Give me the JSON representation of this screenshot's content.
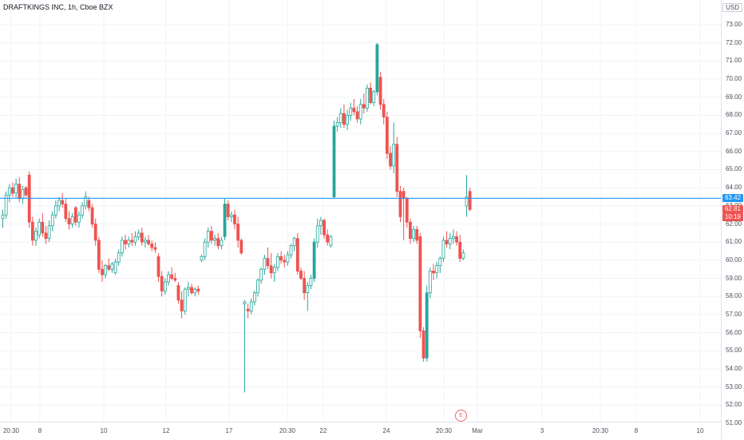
{
  "title": "DRAFTKINGS INC, 1h, Cboe BZX",
  "currency": "USD",
  "colors": {
    "up": "#26a69a",
    "down": "#ef5350",
    "price_line": "#2196f3",
    "grid": "#f0f3fa"
  },
  "price_ticks": [
    "73.00",
    "72.00",
    "71.00",
    "70.00",
    "69.00",
    "68.00",
    "67.00",
    "66.00",
    "65.00",
    "64.00",
    "63.00",
    "62.00",
    "61.00",
    "60.00",
    "59.00",
    "58.00",
    "57.00",
    "56.00",
    "55.00",
    "54.00",
    "53.00",
    "52.00",
    "51.00"
  ],
  "time_labels": [
    "20:30",
    "8",
    "10",
    "12",
    "17",
    "20:30",
    "22",
    "24",
    "20:30",
    "Mar",
    "3",
    "20:30",
    "8",
    "10"
  ],
  "last_price": "63.42",
  "current_price": "62.81",
  "countdown": "10:19",
  "earnings_marker": "E",
  "chart_data": {
    "type": "candlestick",
    "title": "DRAFTKINGS INC, 1h, Cboe BZX",
    "ylim": [
      50.5,
      73.5
    ],
    "y_unit": "USD",
    "reference_line": 63.42,
    "candles": [
      [
        62.3,
        62.8,
        61.8,
        62.5
      ],
      [
        62.5,
        63.8,
        62.3,
        63.6
      ],
      [
        63.6,
        64.2,
        63.2,
        64.0
      ],
      [
        64.0,
        64.3,
        63.5,
        63.7
      ],
      [
        63.7,
        64.5,
        63.4,
        64.2
      ],
      [
        64.2,
        64.6,
        63.2,
        63.4
      ],
      [
        63.4,
        64.1,
        63.1,
        63.9
      ],
      [
        64.0,
        64.1,
        63.5,
        63.6
      ],
      [
        64.7,
        64.9,
        61.8,
        62.1
      ],
      [
        62.1,
        62.4,
        60.8,
        61.1
      ],
      [
        61.1,
        61.8,
        60.8,
        61.6
      ],
      [
        61.4,
        62.3,
        61.2,
        62.1
      ],
      [
        62.1,
        62.6,
        61.3,
        61.5
      ],
      [
        61.5,
        61.9,
        60.9,
        61.2
      ],
      [
        61.2,
        62.2,
        61.0,
        61.9
      ],
      [
        61.9,
        62.7,
        61.6,
        62.5
      ],
      [
        62.5,
        63.3,
        62.3,
        63.0
      ],
      [
        63.0,
        63.5,
        62.7,
        63.3
      ],
      [
        63.3,
        63.7,
        62.9,
        63.1
      ],
      [
        63.1,
        63.4,
        62.1,
        62.3
      ],
      [
        62.3,
        62.7,
        61.7,
        62.0
      ],
      [
        62.0,
        62.6,
        61.8,
        62.4
      ],
      [
        62.9,
        63.0,
        61.9,
        62.1
      ],
      [
        62.1,
        62.7,
        61.8,
        62.5
      ],
      [
        62.5,
        63.2,
        62.3,
        63.0
      ],
      [
        63.0,
        63.8,
        62.8,
        63.5
      ],
      [
        63.3,
        63.5,
        62.7,
        62.9
      ],
      [
        62.9,
        63.1,
        61.8,
        62.0
      ],
      [
        62.0,
        62.3,
        60.8,
        61.1
      ],
      [
        61.1,
        61.3,
        59.3,
        59.5
      ],
      [
        59.5,
        60.0,
        58.8,
        59.2
      ],
      [
        59.2,
        59.8,
        59.0,
        59.7
      ],
      [
        59.7,
        60.1,
        59.4,
        59.5
      ],
      [
        59.5,
        59.9,
        59.3,
        59.8
      ],
      [
        59.3,
        60.1,
        59.2,
        59.9
      ],
      [
        59.9,
        60.6,
        59.7,
        60.4
      ],
      [
        60.4,
        61.3,
        60.2,
        61.1
      ],
      [
        61.1,
        61.4,
        60.6,
        60.9
      ],
      [
        60.9,
        61.3,
        60.7,
        61.1
      ],
      [
        61.1,
        61.5,
        60.8,
        61.0
      ],
      [
        61.0,
        61.6,
        60.8,
        61.3
      ],
      [
        61.3,
        61.7,
        61.1,
        61.5
      ],
      [
        61.5,
        61.8,
        60.8,
        61.0
      ],
      [
        61.0,
        61.3,
        60.7,
        61.1
      ],
      [
        61.1,
        61.4,
        60.8,
        60.9
      ],
      [
        60.9,
        61.1,
        60.5,
        60.7
      ],
      [
        60.7,
        61.0,
        60.4,
        60.6
      ],
      [
        60.2,
        60.4,
        58.8,
        59.1
      ],
      [
        59.1,
        59.4,
        58.0,
        58.3
      ],
      [
        58.3,
        59.0,
        58.1,
        58.8
      ],
      [
        58.8,
        59.4,
        58.6,
        59.2
      ],
      [
        59.2,
        59.6,
        58.9,
        59.0
      ],
      [
        59.0,
        59.3,
        58.8,
        58.9
      ],
      [
        58.6,
        58.8,
        57.6,
        57.8
      ],
      [
        57.8,
        58.3,
        56.8,
        57.2
      ],
      [
        57.2,
        58.5,
        57.0,
        58.4
      ],
      [
        58.4,
        58.8,
        58.0,
        58.5
      ],
      [
        58.5,
        58.7,
        58.1,
        58.2
      ],
      [
        58.2,
        58.5,
        58.0,
        58.4
      ],
      [
        58.4,
        58.6,
        58.1,
        58.3
      ],
      [
        60.0,
        60.3,
        59.9,
        60.2
      ],
      [
        60.2,
        61.2,
        60.0,
        61.0
      ],
      [
        61.0,
        61.8,
        60.7,
        61.6
      ],
      [
        61.6,
        61.9,
        60.9,
        61.1
      ],
      [
        61.1,
        61.4,
        60.8,
        61.2
      ],
      [
        61.2,
        61.5,
        60.6,
        60.8
      ],
      [
        60.8,
        61.3,
        60.6,
        61.1
      ],
      [
        61.3,
        63.4,
        61.1,
        63.1
      ],
      [
        63.1,
        63.3,
        62.2,
        62.4
      ],
      [
        62.4,
        62.7,
        62.1,
        62.5
      ],
      [
        62.5,
        62.8,
        61.7,
        62.0
      ],
      [
        62.0,
        62.4,
        60.7,
        61.1
      ],
      [
        61.1,
        61.2,
        60.3,
        60.4
      ],
      [
        57.6,
        57.8,
        52.7,
        57.7
      ],
      [
        57.3,
        57.6,
        56.8,
        57.2
      ],
      [
        57.2,
        57.9,
        57.0,
        57.7
      ],
      [
        57.7,
        58.3,
        57.5,
        58.2
      ],
      [
        58.2,
        59.0,
        58.0,
        58.9
      ],
      [
        58.9,
        59.6,
        58.7,
        59.5
      ],
      [
        59.5,
        60.3,
        59.2,
        60.1
      ],
      [
        60.1,
        60.7,
        59.5,
        59.7
      ],
      [
        59.7,
        60.4,
        59.0,
        59.3
      ],
      [
        59.3,
        59.8,
        58.8,
        59.6
      ],
      [
        59.6,
        60.4,
        59.4,
        60.2
      ],
      [
        60.2,
        60.5,
        59.8,
        60.0
      ],
      [
        60.0,
        60.3,
        59.6,
        59.9
      ],
      [
        59.9,
        60.5,
        59.7,
        60.3
      ],
      [
        60.3,
        60.9,
        60.1,
        60.8
      ],
      [
        60.8,
        61.3,
        60.5,
        61.2
      ],
      [
        61.2,
        61.5,
        59.2,
        59.4
      ],
      [
        59.4,
        59.6,
        58.9,
        59.0
      ],
      [
        59.0,
        59.4,
        57.8,
        58.2
      ],
      [
        58.2,
        58.8,
        57.2,
        58.6
      ],
      [
        58.6,
        59.2,
        58.4,
        59.0
      ],
      [
        59.0,
        61.2,
        58.8,
        61.0
      ],
      [
        61.0,
        62.3,
        60.7,
        61.9
      ],
      [
        61.9,
        62.4,
        61.4,
        62.2
      ],
      [
        62.2,
        62.3,
        61.2,
        61.4
      ],
      [
        61.4,
        61.7,
        60.8,
        61.0
      ],
      [
        60.8,
        61.4,
        60.7,
        61.3
      ],
      [
        63.5,
        67.7,
        63.4,
        67.4
      ],
      [
        67.4,
        67.9,
        67.1,
        67.6
      ],
      [
        67.6,
        68.4,
        67.3,
        68.1
      ],
      [
        68.1,
        68.6,
        67.3,
        67.5
      ],
      [
        67.5,
        68.3,
        67.2,
        68.0
      ],
      [
        68.0,
        68.7,
        67.7,
        68.4
      ],
      [
        68.4,
        68.9,
        68.0,
        68.2
      ],
      [
        68.2,
        68.5,
        67.6,
        67.8
      ],
      [
        67.8,
        68.9,
        67.5,
        68.6
      ],
      [
        68.6,
        69.2,
        68.1,
        68.4
      ],
      [
        68.4,
        69.7,
        68.2,
        69.5
      ],
      [
        69.5,
        69.8,
        68.6,
        68.7
      ],
      [
        68.7,
        69.4,
        68.5,
        69.3
      ],
      [
        69.3,
        72.0,
        69.1,
        71.9
      ],
      [
        70.1,
        70.4,
        68.3,
        68.6
      ],
      [
        68.6,
        68.9,
        67.5,
        67.9
      ],
      [
        67.9,
        68.2,
        65.6,
        65.9
      ],
      [
        65.9,
        66.3,
        65.0,
        65.2
      ],
      [
        65.2,
        67.6,
        64.8,
        66.4
      ],
      [
        66.4,
        66.8,
        63.5,
        63.8
      ],
      [
        63.8,
        64.1,
        62.1,
        62.4
      ],
      [
        63.8,
        64.0,
        61.1,
        63.4
      ],
      [
        63.4,
        63.5,
        61.8,
        62.1
      ],
      [
        62.1,
        62.3,
        60.9,
        61.2
      ],
      [
        61.2,
        61.9,
        61.0,
        61.7
      ],
      [
        61.7,
        61.9,
        60.9,
        61.1
      ],
      [
        61.3,
        61.5,
        55.7,
        56.1
      ],
      [
        56.1,
        56.3,
        54.4,
        54.6
      ],
      [
        54.6,
        58.6,
        54.4,
        58.2
      ],
      [
        58.2,
        59.6,
        57.9,
        59.4
      ],
      [
        59.4,
        59.8,
        58.9,
        59.3
      ],
      [
        59.3,
        59.9,
        59.0,
        59.7
      ],
      [
        59.7,
        60.2,
        59.3,
        60.1
      ],
      [
        60.1,
        61.3,
        59.9,
        61.1
      ],
      [
        61.1,
        61.6,
        60.7,
        60.9
      ],
      [
        60.9,
        61.5,
        60.6,
        61.2
      ],
      [
        61.2,
        61.7,
        60.9,
        61.3
      ],
      [
        61.3,
        61.6,
        60.8,
        61.0
      ],
      [
        61.0,
        61.4,
        59.9,
        60.1
      ],
      [
        60.1,
        60.6,
        60.0,
        60.4
      ],
      [
        63.0,
        64.7,
        62.4,
        63.5
      ],
      [
        63.8,
        64.0,
        62.7,
        62.8
      ]
    ]
  }
}
